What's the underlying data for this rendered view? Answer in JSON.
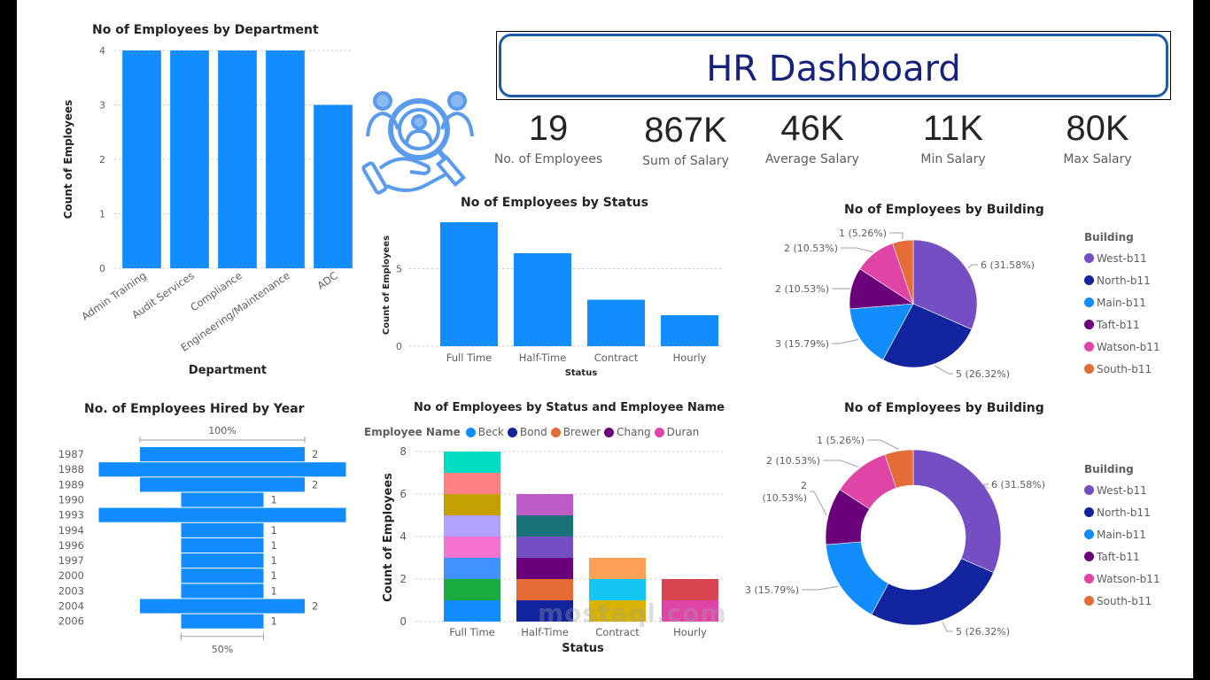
{
  "header": {
    "title": "HR Dashboard",
    "icon": "hr-search-people-icon"
  },
  "kpis": [
    {
      "value": "19",
      "label": "No. of Employees"
    },
    {
      "value": "867K",
      "label": "Sum of Salary"
    },
    {
      "value": "46K",
      "label": "Average Salary"
    },
    {
      "value": "11K",
      "label": "Min Salary"
    },
    {
      "value": "80K",
      "label": "Max Salary"
    }
  ],
  "colors": {
    "bar": "#118dff",
    "west": "#744ec2",
    "north": "#12239e",
    "main": "#118dff",
    "taft": "#6b007b",
    "watson": "#e044a7",
    "south": "#e66c37"
  },
  "watermark": "mostaql.com",
  "chart_data": [
    {
      "id": "dept",
      "type": "bar",
      "title": "No of Employees by Department",
      "xlabel": "Department",
      "ylabel": "Count of Employees",
      "categories": [
        "Admin Training",
        "Audit Services",
        "Compliance",
        "Engineering/Maintenance",
        "ADC"
      ],
      "values": [
        4,
        4,
        4,
        4,
        3
      ],
      "ylim": [
        0,
        4
      ],
      "yticks": [
        "0",
        "1",
        "2",
        "3",
        "4"
      ],
      "grid": true
    },
    {
      "id": "status",
      "type": "bar",
      "title": "No of Employees by Status",
      "xlabel": "Status",
      "ylabel": "Count of Employees",
      "categories": [
        "Full Time",
        "Half-Time",
        "Contract",
        "Hourly"
      ],
      "values": [
        8,
        6,
        3,
        2
      ],
      "ylim": [
        0,
        8
      ],
      "yticks": [
        "0",
        "5"
      ],
      "grid": true
    },
    {
      "id": "building-pie",
      "type": "pie",
      "title": "No of Employees by Building",
      "legend_title": "Building",
      "legend_position": "right",
      "slices": [
        {
          "label": "West-b11",
          "value": 6,
          "text": "6 (31.58%)"
        },
        {
          "label": "North-b11",
          "value": 5,
          "text": "5 (26.32%)"
        },
        {
          "label": "Main-b11",
          "value": 3,
          "text": "3 (15.79%)"
        },
        {
          "label": "Taft-b11",
          "value": 2,
          "text": "2 (10.53%)"
        },
        {
          "label": "Watson-b11",
          "value": 2,
          "text": "2 (10.53%)"
        },
        {
          "label": "South-b11",
          "value": 1,
          "text": "1 (5.26%)"
        }
      ]
    },
    {
      "id": "hired",
      "type": "bar",
      "orientation": "funnel",
      "title": "No. of Employees Hired by Year",
      "categories": [
        "1987",
        "1988",
        "1989",
        "1990",
        "1993",
        "1994",
        "1996",
        "1997",
        "2000",
        "2003",
        "2004",
        "2006"
      ],
      "values": [
        2,
        3,
        2,
        1,
        3,
        1,
        1,
        1,
        1,
        1,
        2,
        1
      ],
      "value_labels": [
        "2",
        "",
        "2",
        "1",
        "",
        "1",
        "1",
        "1",
        "1",
        "1",
        "2",
        "1"
      ],
      "top_annotation": "100%",
      "bottom_annotation": "50%"
    },
    {
      "id": "stacked",
      "type": "bar",
      "stacked": true,
      "title": "No of Employees by Status and Employee Name",
      "xlabel": "Status",
      "ylabel": "Count of Employees",
      "legend_title": "Employee Name",
      "legend_position": "top",
      "legend": [
        {
          "name": "Beck",
          "color": "#118dff"
        },
        {
          "name": "Bond",
          "color": "#12239e"
        },
        {
          "name": "Brewer",
          "color": "#e66c37"
        },
        {
          "name": "Chang",
          "color": "#6b007b"
        },
        {
          "name": "Duran",
          "color": "#e044a7"
        }
      ],
      "categories": [
        "Full Time",
        "Half-Time",
        "Contract",
        "Hourly"
      ],
      "segments": [
        [
          "#118dff",
          "#1aab40",
          "#4092ff",
          "#f472d0",
          "#b3a1ff",
          "#c4a000",
          "#ff8080",
          "#00dcc0"
        ],
        [
          "#12239e",
          "#e66c37",
          "#6b007b",
          "#744ec2",
          "#197278",
          "#bd5cc7"
        ],
        [
          "#d9b300",
          "#15c6f4",
          "#ffa058"
        ],
        [
          "#e044a7",
          "#d64550"
        ]
      ],
      "totals": [
        8,
        6,
        3,
        2
      ],
      "ylim": [
        0,
        8
      ],
      "yticks": [
        "0",
        "2",
        "4",
        "6",
        "8"
      ],
      "grid": true
    },
    {
      "id": "building-donut",
      "type": "pie",
      "donut": true,
      "title": "No of Employees by Building",
      "legend_title": "Building",
      "legend_position": "right",
      "slices": [
        {
          "label": "West-b11",
          "value": 6,
          "text": "6 (31.58%)"
        },
        {
          "label": "North-b11",
          "value": 5,
          "text": "5 (26.32%)"
        },
        {
          "label": "Main-b11",
          "value": 3,
          "text": "3 (15.79%)"
        },
        {
          "label": "Taft-b11",
          "value": 2,
          "text": "2\n(10.53%)"
        },
        {
          "label": "Watson-b11",
          "value": 2,
          "text": "2 (10.53%)"
        },
        {
          "label": "South-b11",
          "value": 1,
          "text": "1 (5.26%)"
        }
      ]
    }
  ]
}
